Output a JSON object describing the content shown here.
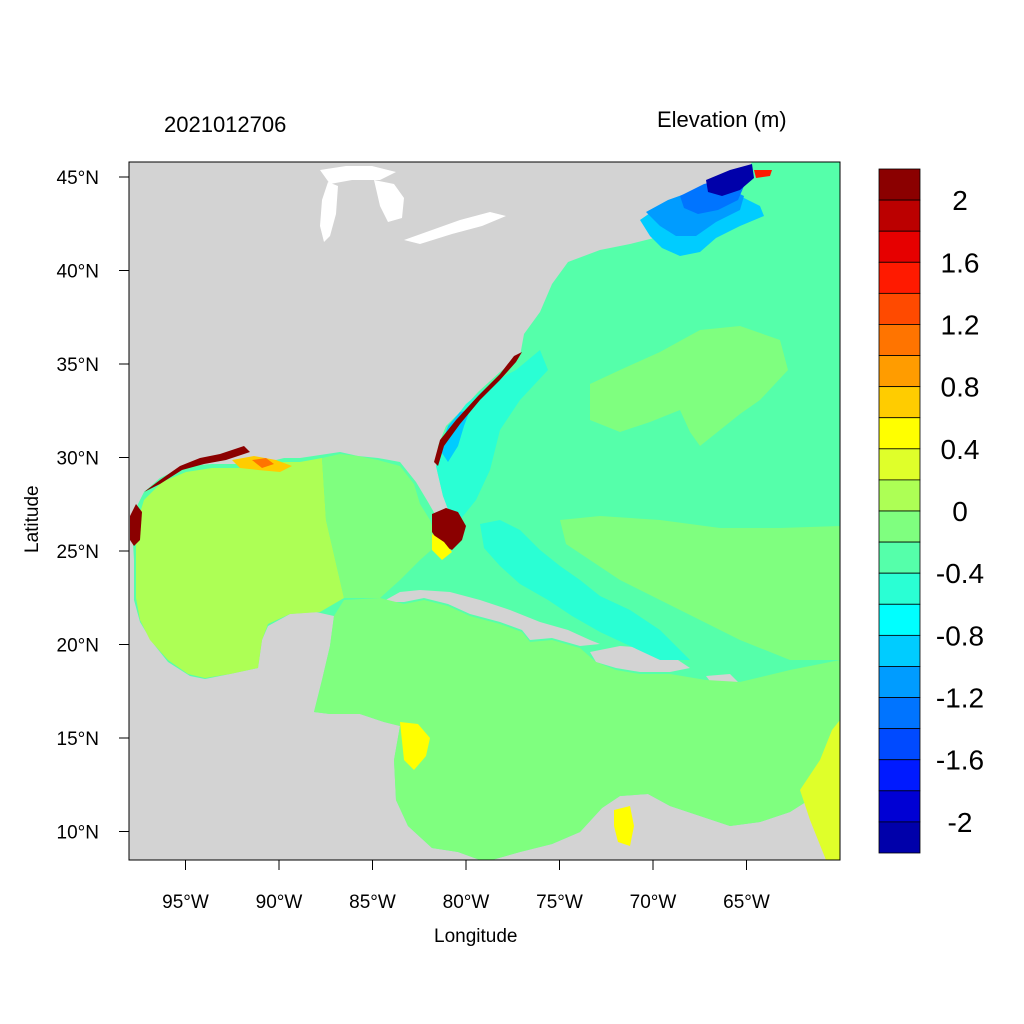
{
  "map": {
    "date_label": "2021012706",
    "units_label": "Elevation (m)",
    "xlabel": "Longitude",
    "ylabel": "Latitude",
    "x_ticks": [
      "95°W",
      "90°W",
      "85°W",
      "80°W",
      "75°W",
      "70°W",
      "65°W"
    ],
    "y_ticks": [
      "45°N",
      "40°N",
      "35°N",
      "30°N",
      "25°N",
      "20°N",
      "15°N",
      "10°N"
    ],
    "land_color": "#d3d3d3",
    "colorbar": {
      "colors": [
        "#8b0000",
        "#bb0000",
        "#e60000",
        "#ff1a00",
        "#ff4a00",
        "#ff7400",
        "#ff9c00",
        "#ffcc00",
        "#ffff00",
        "#dfff2a",
        "#adff55",
        "#7fff7f",
        "#55ffaa",
        "#2affd4",
        "#00ffff",
        "#00ccff",
        "#009cff",
        "#0074ff",
        "#004aff",
        "#001aff",
        "#0000d4",
        "#0000aa"
      ],
      "labels": [
        "2",
        "1.6",
        "1.2",
        "0.8",
        "0.4",
        "0",
        "-0.4",
        "-0.8",
        "-1.2",
        "-1.6",
        "-2"
      ]
    }
  }
}
